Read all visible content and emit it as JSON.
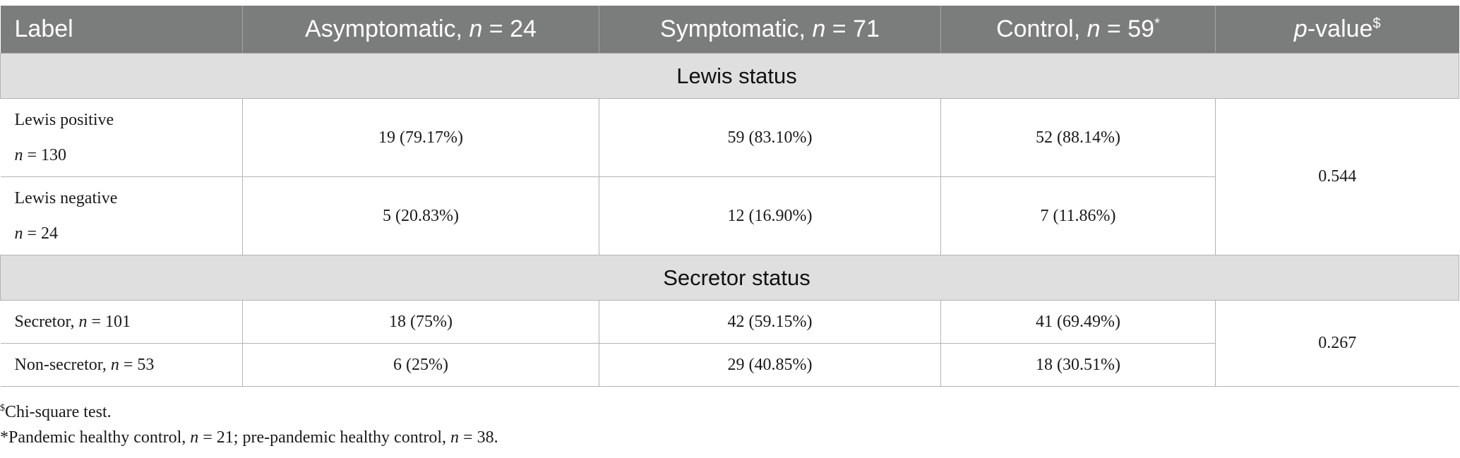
{
  "header": {
    "label": "Label",
    "asymptomatic": "Asymptomatic, ",
    "asymptomatic_n": "n",
    "asymptomatic_eq": " = 24",
    "symptomatic": "Symptomatic, ",
    "symptomatic_n": "n",
    "symptomatic_eq": " = 71",
    "control": "Control, ",
    "control_n": "n",
    "control_eq": " = 59",
    "control_mark": "*",
    "pvalue_p": "p",
    "pvalue_rest": "-value",
    "pvalue_mark": "$"
  },
  "sections": {
    "lewis": {
      "title": "Lewis status",
      "rows": [
        {
          "label_line1": "Lewis positive",
          "label_n": "n",
          "label_eq": " = 130",
          "asymptomatic": "19 (79.17%)",
          "symptomatic": "59 (83.10%)",
          "control": "52 (88.14%)"
        },
        {
          "label_line1": "Lewis negative",
          "label_n": "n",
          "label_eq": " = 24",
          "asymptomatic": "5 (20.83%)",
          "symptomatic": "12 (16.90%)",
          "control": "7 (11.86%)"
        }
      ],
      "p_value": "0.544"
    },
    "secretor": {
      "title": "Secretor status",
      "rows": [
        {
          "label_prefix": "Secretor, ",
          "label_n": "n",
          "label_eq": " = 101",
          "asymptomatic": "18 (75%)",
          "symptomatic": "42 (59.15%)",
          "control": "41 (69.49%)"
        },
        {
          "label_prefix": "Non-secretor, ",
          "label_n": "n",
          "label_eq": " = 53",
          "asymptomatic": "6 (25%)",
          "symptomatic": "29 (40.85%)",
          "control": "18 (30.51%)"
        }
      ],
      "p_value": "0.267"
    }
  },
  "footnotes": {
    "chi_mark": "$",
    "chi_text": "Chi-square test.",
    "control_text_a": "*Pandemic healthy control, ",
    "control_n1": "n",
    "control_text_b": " = 21; pre-pandemic healthy control, ",
    "control_n2": "n",
    "control_text_c": " = 38."
  }
}
